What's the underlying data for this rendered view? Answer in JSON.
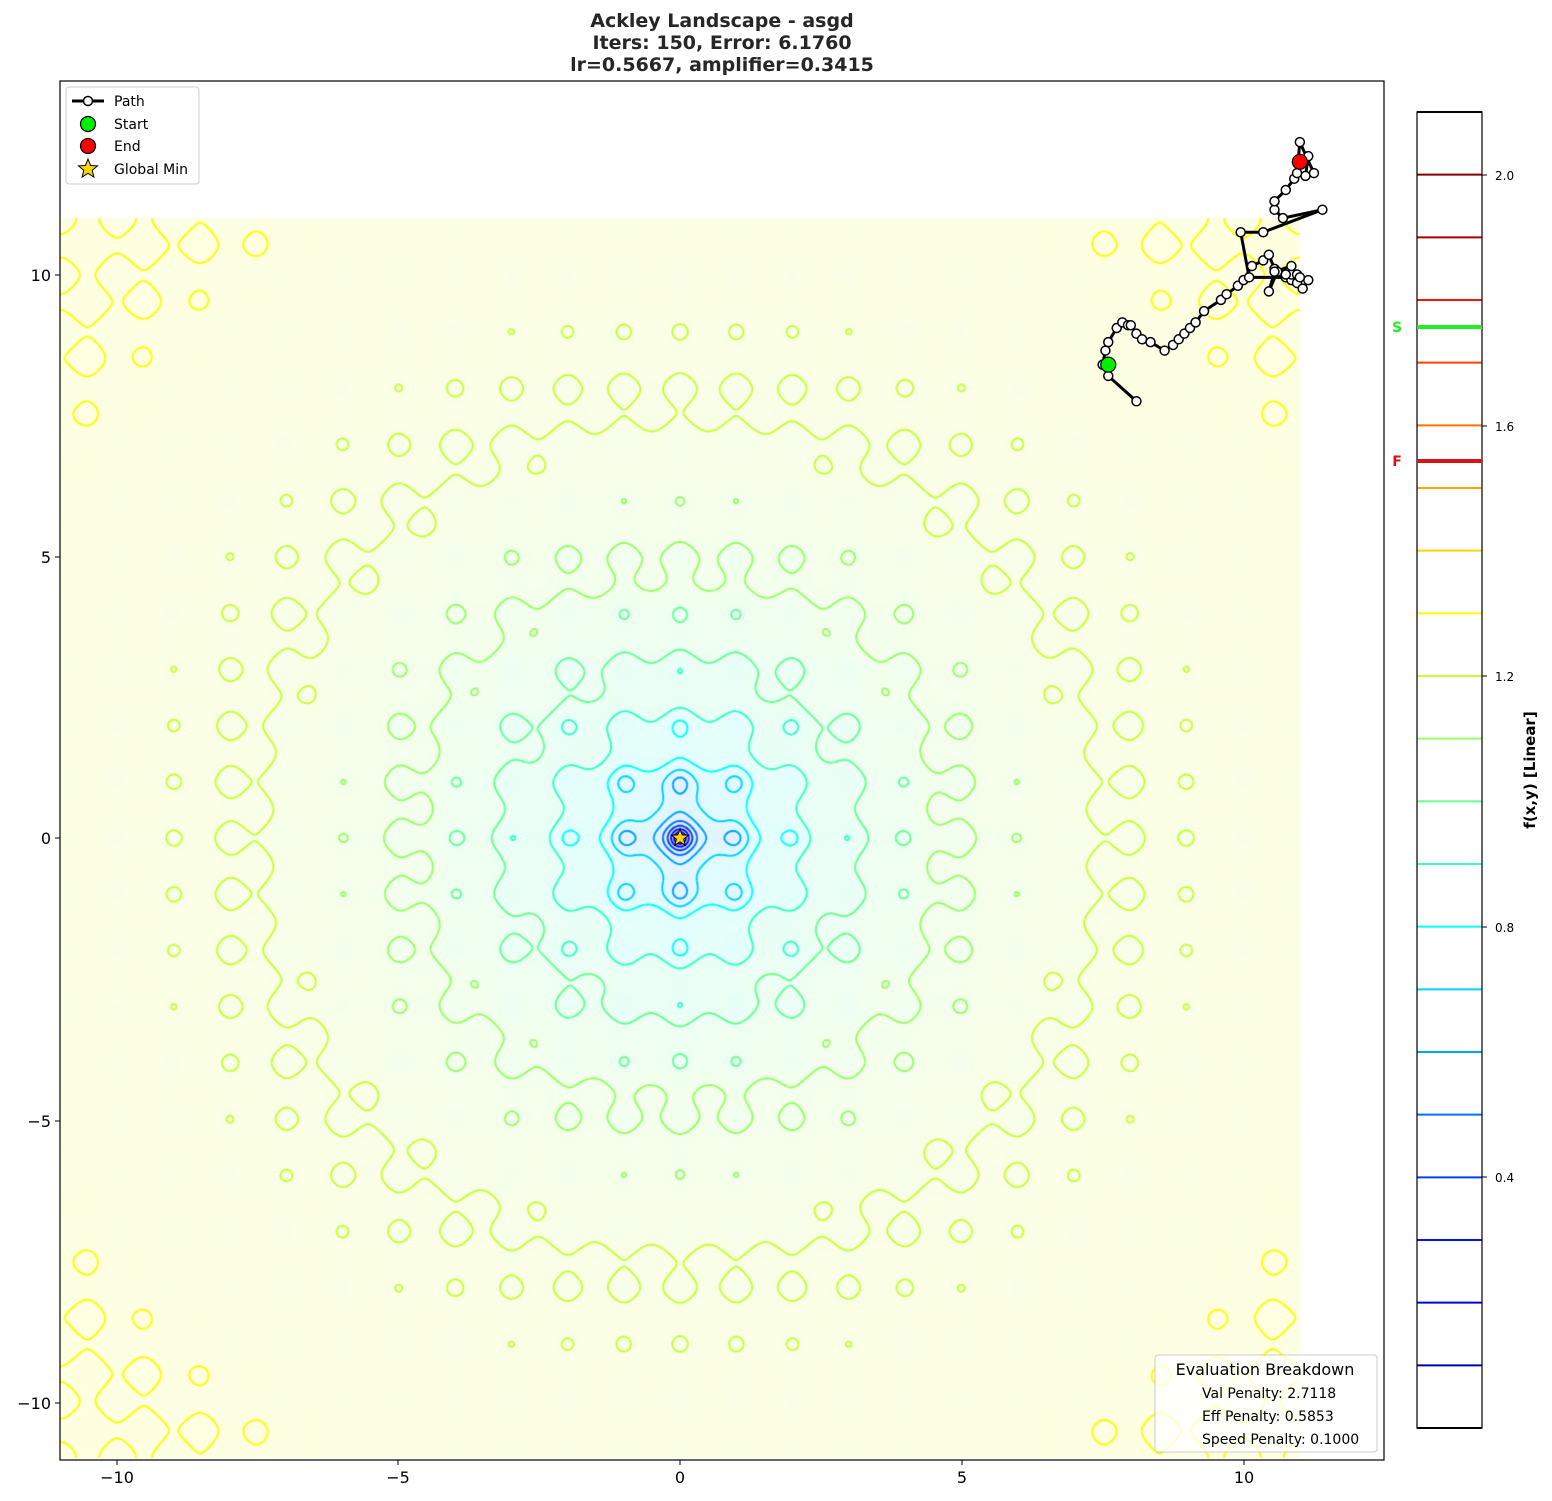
{
  "title": {
    "line1": "Ackley Landscape - asgd",
    "line2": "Iters: 150, Error: 6.1760",
    "line3": "lr=0.5667, amplifier=0.3415"
  },
  "legend": {
    "items": [
      {
        "label": "Path",
        "symbol": "line-white-circle"
      },
      {
        "label": "Start",
        "symbol": "circle",
        "color": "#00ff00"
      },
      {
        "label": "End",
        "symbol": "circle",
        "color": "#ff0000"
      },
      {
        "label": "Global Min",
        "symbol": "star",
        "color": "#ffd700"
      }
    ]
  },
  "evaluation": {
    "title": "Evaluation Breakdown",
    "lines": [
      "Val Penalty: 2.7118",
      "Eff Penalty: 0.5853",
      "Speed Penalty: 0.1000"
    ]
  },
  "axes": {
    "x_ticks": [
      "−10",
      "−5",
      "0",
      "5",
      "10"
    ],
    "y_ticks": [
      "10",
      "5",
      "0",
      "−5",
      "−10"
    ]
  },
  "colorbar": {
    "label": "f(x,y) [Linear]",
    "ticks": [
      "2.0",
      "1.6",
      "1.2",
      "0.8",
      "0.4"
    ],
    "start_marker": {
      "letter": "S",
      "color": "#22ee22"
    },
    "final_marker": {
      "letter": "F",
      "color": "#dd1111"
    }
  },
  "colors": {
    "path": "#000000",
    "path_marker_fill": "#ffffff",
    "start": "#00ee00",
    "end": "#ff0000",
    "global_min": "#ffd700"
  },
  "chart_data": {
    "type": "contour",
    "title": "Ackley Landscape - asgd | Iters: 150, Error: 6.1760 | lr=0.5667, amplifier=0.3415",
    "function": "Ackley (log-scaled display, linear colorbar)",
    "xlabel": "",
    "ylabel": "",
    "xlim": [
      -11.0,
      12.5
    ],
    "ylim": [
      -11.0,
      13.5
    ],
    "field_extent": {
      "x": [
        -11,
        11
      ],
      "y": [
        -11,
        11
      ]
    },
    "colormap": "jet",
    "contour_levels": [
      0.0,
      0.1,
      0.2,
      0.3,
      0.4,
      0.5,
      0.6,
      0.7,
      0.8,
      0.9,
      1.0,
      1.1,
      1.2,
      1.3,
      1.4,
      1.5,
      1.6,
      1.7,
      1.8,
      1.9,
      2.0,
      2.1
    ],
    "colorbar": {
      "label": "f(x,y) [Linear]",
      "range": [
        0.0,
        2.1
      ],
      "ticks": [
        0.4,
        0.8,
        1.2,
        1.6,
        2.0
      ]
    },
    "global_min": {
      "x": 0,
      "y": 0
    },
    "start": {
      "x": 7.6,
      "y": 8.4,
      "value_marker": 1.74
    },
    "end": {
      "x": 11.0,
      "y": 12.0,
      "value_marker": 1.53
    },
    "path": {
      "x": [
        8.1,
        7.6,
        7.5,
        7.55,
        7.6,
        7.75,
        7.85,
        7.95,
        8.0,
        8.1,
        8.2,
        8.35,
        8.6,
        8.75,
        8.85,
        8.95,
        9.05,
        9.15,
        9.3,
        9.6,
        9.7,
        9.9,
        10.0,
        10.15,
        10.35,
        10.45,
        10.55,
        10.75,
        10.85,
        10.95,
        11.05,
        11.15,
        10.85,
        10.75,
        10.6,
        10.45,
        10.55,
        10.85,
        10.95,
        11.0,
        10.1,
        9.95,
        10.35,
        11.4,
        10.7,
        10.55,
        10.55,
        10.75,
        10.9,
        11.0,
        11.15,
        11.1,
        10.95,
        11.0,
        11.25
      ],
      "y": [
        7.75,
        8.2,
        8.4,
        8.65,
        8.8,
        9.05,
        9.15,
        9.1,
        9.1,
        8.95,
        8.85,
        8.8,
        8.65,
        8.75,
        8.85,
        8.95,
        9.05,
        9.15,
        9.35,
        9.55,
        9.65,
        9.8,
        9.9,
        10.15,
        10.25,
        10.35,
        10.1,
        9.95,
        9.9,
        9.85,
        9.75,
        9.9,
        10.0,
        10.0,
        10.05,
        9.7,
        10.05,
        10.15,
        10.0,
        9.95,
        9.95,
        10.75,
        10.75,
        11.15,
        11.0,
        11.15,
        11.3,
        11.5,
        11.7,
        12.0,
        12.1,
        11.75,
        11.8,
        12.35,
        11.8
      ]
    },
    "legend": [
      "Path",
      "Start",
      "End",
      "Global Min"
    ],
    "legend_position": "upper left",
    "annotation_box": {
      "title": "Evaluation Breakdown",
      "val_penalty": 2.7118,
      "eff_penalty": 0.5853,
      "speed_penalty": 0.1,
      "position": "lower right"
    },
    "iterations": 150,
    "error": 6.176,
    "lr": 0.5667,
    "amplifier": 0.3415
  }
}
